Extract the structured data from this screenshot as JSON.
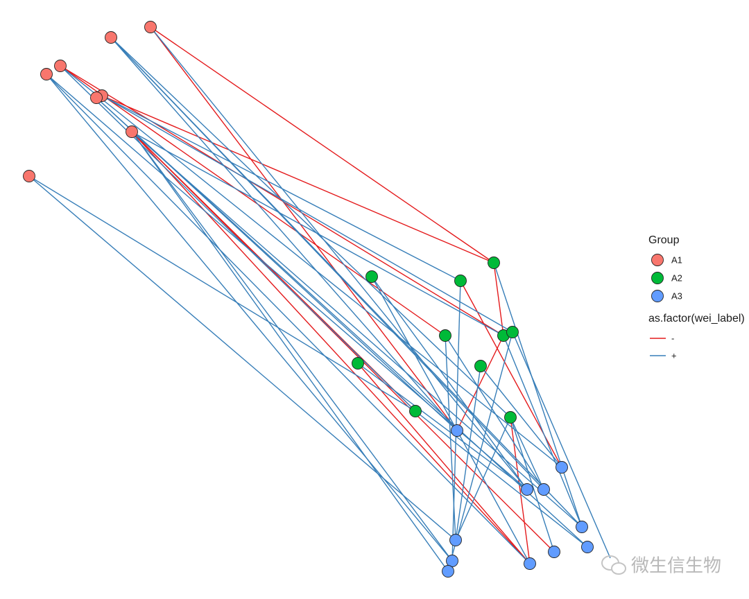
{
  "legend": {
    "group_title": "Group",
    "groups": [
      "A1",
      "A2",
      "A3"
    ],
    "edge_title": "as.factor(wei_label)",
    "edge_signs": [
      "-",
      "+"
    ]
  },
  "watermark": "微生信生物"
}
